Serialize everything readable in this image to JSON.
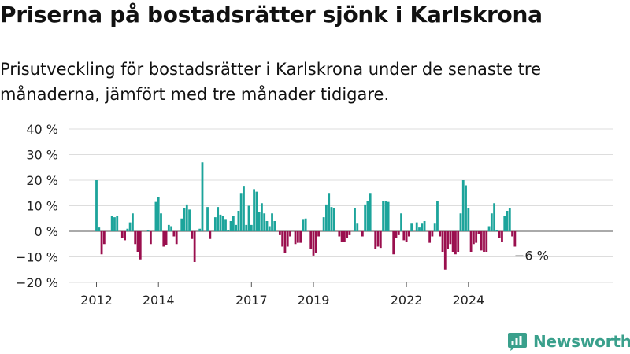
{
  "title": "Priserna på bostadsrätter sjönk i Karlskrona",
  "subtitle": "Prisutveckling för bostadsrätter i Karlskrona under de senaste tre månaderna, jämfört med tre månader tidigare.",
  "brand": {
    "name": "Newsworthy",
    "icon": "bar-chart-logo-icon"
  },
  "colors": {
    "positive": "#1ca49b",
    "negative": "#9a0f4e",
    "grid": "#dddddd",
    "axis": "#555555"
  },
  "chart_data": {
    "type": "bar",
    "title": "",
    "xlabel": "",
    "ylabel": "",
    "ylim": [
      -20,
      40
    ],
    "y_ticks": [
      40,
      30,
      20,
      10,
      0,
      -10,
      -20
    ],
    "y_tick_labels": [
      "40 %",
      "30 %",
      "20 %",
      "10 %",
      "0 %",
      "−10 %",
      "−20 %"
    ],
    "x_tick_labels": [
      {
        "label": "2012",
        "index": 0
      },
      {
        "label": "2014",
        "index": 24
      },
      {
        "label": "2017",
        "index": 60
      },
      {
        "label": "2019",
        "index": 84
      },
      {
        "label": "2022",
        "index": 120
      },
      {
        "label": "2024",
        "index": 144
      }
    ],
    "end_label": "−6 %",
    "grid": true,
    "unit": "%",
    "start": "2012-01",
    "frequency": "monthly",
    "values": [
      20,
      1.5,
      -9,
      -5,
      0,
      0,
      6,
      5.5,
      6,
      0,
      -2.5,
      -3.5,
      1,
      3.5,
      7,
      -5,
      -8,
      -11,
      0,
      0,
      0.5,
      -5,
      0,
      11.5,
      13.5,
      7,
      -6,
      -5.5,
      2.5,
      2,
      -2,
      -5,
      0,
      5,
      9,
      10.5,
      8.5,
      -3,
      -12,
      0,
      1,
      27,
      0,
      9.5,
      -3,
      0,
      5.5,
      9.5,
      6.5,
      6,
      4.5,
      0.5,
      4,
      6,
      2.5,
      8,
      15,
      17.5,
      2.5,
      10,
      2.5,
      16.5,
      15.5,
      7.5,
      11,
      7,
      4,
      2,
      7,
      4,
      0,
      -1.5,
      -6,
      -8.5,
      -6,
      -2,
      0,
      -5,
      -4.5,
      -4.5,
      4.5,
      5,
      0,
      -7,
      -9.5,
      -8.5,
      -2,
      0,
      5.5,
      10.5,
      15,
      9.5,
      9,
      0,
      -2,
      -4,
      -4,
      -2.5,
      -1.5,
      0,
      9,
      3,
      0,
      -2,
      10.5,
      12,
      15,
      0,
      -7,
      -6,
      -6.5,
      12,
      12,
      11.5,
      0,
      -9,
      -2.5,
      -1.5,
      7,
      -3.5,
      -4,
      -2,
      3,
      0,
      3.5,
      1.5,
      3,
      4,
      0,
      -4.5,
      -2,
      3,
      12,
      -2,
      -8,
      -15,
      -7,
      -5,
      -8,
      -9,
      -8,
      7,
      20,
      18,
      9,
      -8,
      -5,
      -4.5,
      -1,
      -7.5,
      -8,
      -8,
      2,
      7,
      11,
      0.5,
      -2.5,
      -4,
      6,
      8,
      9,
      -2,
      -6
    ]
  }
}
